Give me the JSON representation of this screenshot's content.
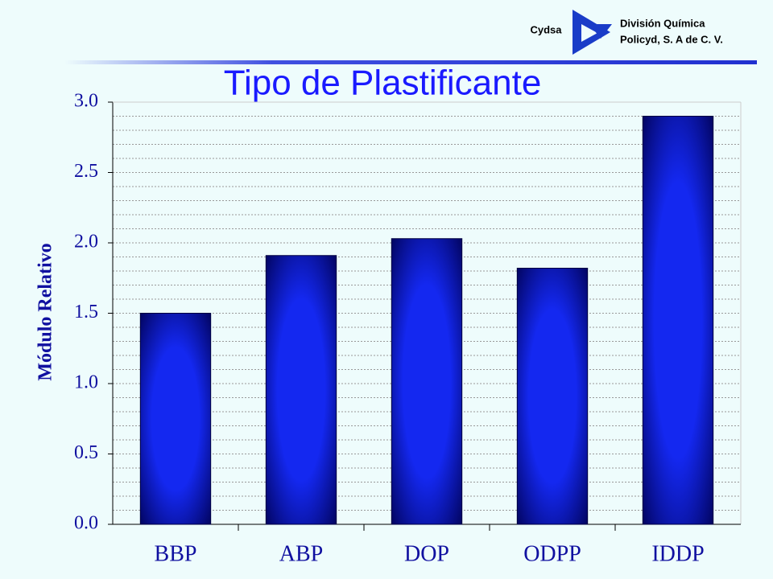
{
  "header": {
    "company": "Cydsa",
    "division": "División Química",
    "unit": "Policyd, S. A de C. V."
  },
  "chart_data": {
    "type": "bar",
    "title": "Tipo de Plastificante",
    "y_label": "Módulo Relativo",
    "categories": [
      "BBP",
      "ABP",
      "DOP",
      "ODPP",
      "IDDP"
    ],
    "values": [
      1.5,
      1.91,
      2.03,
      1.82,
      2.9
    ],
    "color": "#1428f0",
    "ylim": [
      0,
      3
    ],
    "yticks": [
      {
        "value": 0,
        "label": "0.0"
      },
      0.5,
      {
        "value": 1,
        "label": "1.0"
      },
      1.5,
      {
        "value": 2,
        "label": "2.0"
      },
      2.5,
      {
        "value": 3,
        "label": "3.0"
      }
    ],
    "minor_yticks": [
      0.1,
      0.2,
      0.3,
      0.4,
      0.6,
      0.7,
      0.8,
      0.9,
      1.1,
      1.2,
      1.3,
      1.4,
      1.6,
      1.7,
      1.8,
      1.9,
      2.1,
      2.2,
      2.3,
      2.4,
      2.6,
      2.7,
      2.8,
      2.9
    ],
    "grid": true
  }
}
